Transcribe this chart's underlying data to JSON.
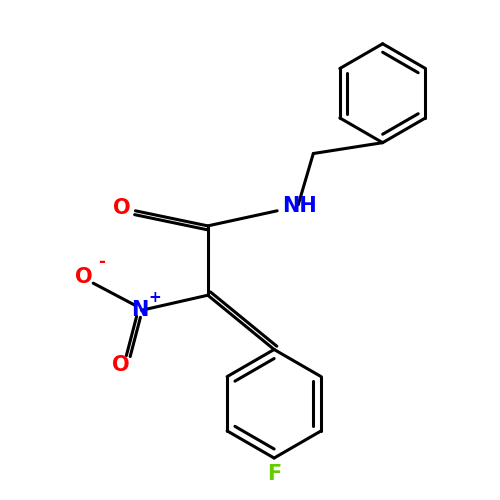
{
  "bg_color": "#ffffff",
  "bond_color": "#000000",
  "bond_width": 2.2,
  "atom_colors": {
    "O": "#ff0000",
    "N_nitro": "#0000ff",
    "O_nitro": "#ff0000",
    "F": "#66cc00",
    "NH": "#0000ff"
  },
  "font_size_atoms": 15,
  "font_size_charge": 11
}
